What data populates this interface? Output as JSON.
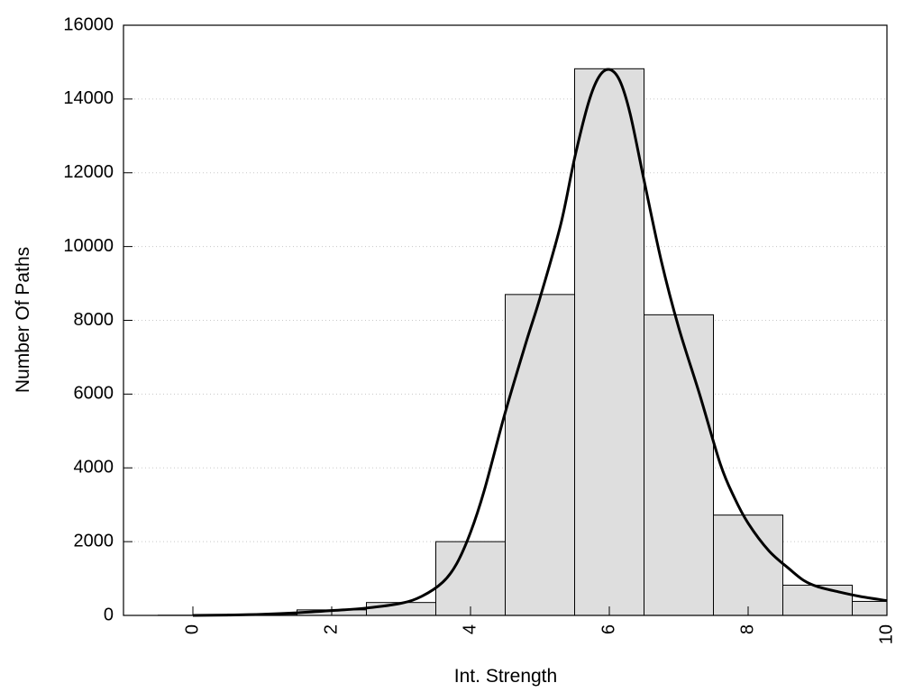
{
  "chart_data": {
    "type": "bar",
    "title": "",
    "xlabel": "Int. Strength",
    "ylabel": "Number Of Paths",
    "xlim": [
      -1,
      10
    ],
    "ylim": [
      0,
      16000
    ],
    "x_ticks": [
      0,
      2,
      4,
      6,
      8,
      10
    ],
    "y_ticks": [
      0,
      2000,
      4000,
      6000,
      8000,
      10000,
      12000,
      14000,
      16000
    ],
    "grid": "horizontal dotted",
    "legend": "none",
    "bar_width": 1,
    "bars": [
      {
        "x": 0,
        "value": 5
      },
      {
        "x": 1,
        "value": 30
      },
      {
        "x": 2,
        "value": 150
      },
      {
        "x": 3,
        "value": 350
      },
      {
        "x": 4,
        "value": 2000
      },
      {
        "x": 5,
        "value": 8700
      },
      {
        "x": 6,
        "value": 14820
      },
      {
        "x": 7,
        "value": 8150
      },
      {
        "x": 8,
        "value": 2720
      },
      {
        "x": 9,
        "value": 820
      },
      {
        "x": 10,
        "value": 380
      }
    ],
    "curve": [
      {
        "x": 0,
        "y": 0
      },
      {
        "x": 0.5,
        "y": 10
      },
      {
        "x": 1,
        "y": 30
      },
      {
        "x": 1.5,
        "y": 70
      },
      {
        "x": 2,
        "y": 130
      },
      {
        "x": 2.5,
        "y": 200
      },
      {
        "x": 3,
        "y": 330
      },
      {
        "x": 3.3,
        "y": 520
      },
      {
        "x": 3.6,
        "y": 900
      },
      {
        "x": 3.8,
        "y": 1400
      },
      {
        "x": 4,
        "y": 2250
      },
      {
        "x": 4.2,
        "y": 3400
      },
      {
        "x": 4.5,
        "y": 5500
      },
      {
        "x": 4.8,
        "y": 7400
      },
      {
        "x": 5,
        "y": 8600
      },
      {
        "x": 5.3,
        "y": 10600
      },
      {
        "x": 5.5,
        "y": 12400
      },
      {
        "x": 5.7,
        "y": 13900
      },
      {
        "x": 5.85,
        "y": 14600
      },
      {
        "x": 6,
        "y": 14800
      },
      {
        "x": 6.15,
        "y": 14500
      },
      {
        "x": 6.3,
        "y": 13600
      },
      {
        "x": 6.5,
        "y": 11800
      },
      {
        "x": 6.75,
        "y": 9600
      },
      {
        "x": 7,
        "y": 7800
      },
      {
        "x": 7.3,
        "y": 6000
      },
      {
        "x": 7.6,
        "y": 4100
      },
      {
        "x": 7.8,
        "y": 3200
      },
      {
        "x": 8,
        "y": 2500
      },
      {
        "x": 8.3,
        "y": 1750
      },
      {
        "x": 8.6,
        "y": 1250
      },
      {
        "x": 8.8,
        "y": 950
      },
      {
        "x": 9,
        "y": 780
      },
      {
        "x": 9.3,
        "y": 640
      },
      {
        "x": 9.6,
        "y": 520
      },
      {
        "x": 10,
        "y": 400
      }
    ],
    "colors": {
      "bar_fill": "#dedede",
      "bar_stroke": "#000000",
      "curve": "#000000",
      "grid": "#c8c8c8"
    }
  }
}
